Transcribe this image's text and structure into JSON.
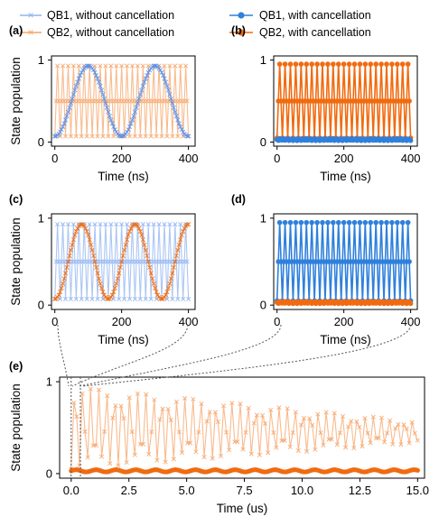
{
  "legend": {
    "left": [
      {
        "label": "QB1, without cancellation",
        "color": "#8fb3f0",
        "marker": "x"
      },
      {
        "label": "QB2, without cancellation",
        "color": "#f6a468",
        "marker": "x"
      }
    ],
    "right": [
      {
        "label": "QB1, with cancellation",
        "color": "#2f80dc",
        "marker": "o"
      },
      {
        "label": "QB2, with cancellation",
        "color": "#f06b10",
        "marker": "o"
      }
    ]
  },
  "chart_data": [
    {
      "panel": "(a)",
      "type": "line",
      "xlabel": "Time (ns)",
      "ylabel": "State population",
      "xlim": [
        -10,
        420
      ],
      "ylim": [
        -0.05,
        1.05
      ],
      "xticks": [
        0,
        200,
        400
      ],
      "yticks": [
        0,
        1
      ],
      "series": [
        {
          "name": "QB2, without cancellation",
          "color": "#f6a468",
          "marker": "x",
          "model": {
            "kind": "cos_osc",
            "period_ns": 16,
            "amplitude": 0.43,
            "offset": 0.5,
            "phase_deg": 0
          },
          "x_range": [
            0,
            400
          ],
          "step_ns": 4
        },
        {
          "name": "QB1, without cancellation",
          "color": "#5b8fe6",
          "marker": "x",
          "model": {
            "kind": "sin_osc",
            "period_ns": 200,
            "amplitude": 0.43,
            "offset": 0.5,
            "phase_deg": -90
          },
          "x_range": [
            0,
            400
          ],
          "step_ns": 4
        }
      ]
    },
    {
      "panel": "(b)",
      "type": "line",
      "xlabel": "Time (ns)",
      "ylabel": "",
      "xlim": [
        -10,
        420
      ],
      "ylim": [
        -0.05,
        1.05
      ],
      "xticks": [
        0,
        200,
        400
      ],
      "yticks": [
        0,
        1
      ],
      "series": [
        {
          "name": "QB2, with cancellation",
          "color": "#f06b10",
          "marker": "o",
          "model": {
            "kind": "cos_osc",
            "period_ns": 16,
            "amplitude": 0.45,
            "offset": 0.5,
            "phase_deg": 0
          },
          "x_range": [
            0,
            400
          ],
          "step_ns": 4
        },
        {
          "name": "QB1, with cancellation",
          "color": "#2f80dc",
          "marker": "o",
          "model": {
            "kind": "flat",
            "value": 0.03
          },
          "x_range": [
            0,
            400
          ],
          "step_ns": 4
        }
      ]
    },
    {
      "panel": "(c)",
      "type": "line",
      "xlabel": "Time (ns)",
      "ylabel": "State population",
      "xlim": [
        -10,
        420
      ],
      "ylim": [
        -0.05,
        1.05
      ],
      "xticks": [
        0,
        200,
        400
      ],
      "yticks": [
        0,
        1
      ],
      "series": [
        {
          "name": "QB1, without cancellation",
          "color": "#8fb3f0",
          "marker": "x",
          "model": {
            "kind": "cos_osc",
            "period_ns": 16,
            "amplitude": 0.43,
            "offset": 0.5,
            "phase_deg": 0
          },
          "x_range": [
            0,
            400
          ],
          "step_ns": 4
        },
        {
          "name": "QB2, without cancellation",
          "color": "#f06b10",
          "marker": "x",
          "model": {
            "kind": "sin_osc",
            "period_ns": 160,
            "amplitude": 0.43,
            "offset": 0.5,
            "phase_deg": -90
          },
          "x_range": [
            0,
            400
          ],
          "step_ns": 4
        }
      ]
    },
    {
      "panel": "(d)",
      "type": "line",
      "xlabel": "Time (ns)",
      "ylabel": "",
      "xlim": [
        -10,
        420
      ],
      "ylim": [
        -0.05,
        1.05
      ],
      "xticks": [
        0,
        200,
        400
      ],
      "yticks": [
        0,
        1
      ],
      "series": [
        {
          "name": "QB1, with cancellation",
          "color": "#2f80dc",
          "marker": "o",
          "model": {
            "kind": "cos_osc",
            "period_ns": 16,
            "amplitude": 0.45,
            "offset": 0.5,
            "phase_deg": 0
          },
          "x_range": [
            0,
            400
          ],
          "step_ns": 4
        },
        {
          "name": "QB2, with cancellation",
          "color": "#f06b10",
          "marker": "o",
          "model": {
            "kind": "flat",
            "value": 0.03
          },
          "x_range": [
            0,
            400
          ],
          "step_ns": 4
        }
      ]
    },
    {
      "panel": "(e)",
      "type": "line",
      "xlabel": "Time (us)",
      "ylabel": "State population",
      "xlim": [
        -0.5,
        15.3
      ],
      "ylim": [
        -0.05,
        1.05
      ],
      "xticks": [
        0.0,
        2.5,
        5.0,
        7.5,
        10.0,
        12.5,
        15.0
      ],
      "xticklabels": [
        "0.0",
        "2.5",
        "5.0",
        "7.5",
        "10.0",
        "12.5",
        "15.0"
      ],
      "yticks": [
        0,
        1
      ],
      "series": [
        {
          "name": "QB2, without cancellation",
          "color": "#f6a468",
          "marker": "x",
          "model": {
            "kind": "decaying_osc",
            "start_amplitude": 0.45,
            "end_amplitude": 0.12,
            "offset_start": 0.5,
            "offset_end": 0.45
          },
          "x_range": [
            0,
            15
          ],
          "step_us": 0.12
        },
        {
          "name": "QB2, with cancellation",
          "color": "#f06b10",
          "marker": "o",
          "model": {
            "kind": "flat",
            "value": 0.03
          },
          "x_range": [
            0,
            15
          ],
          "step_us": 0.06
        }
      ]
    }
  ]
}
